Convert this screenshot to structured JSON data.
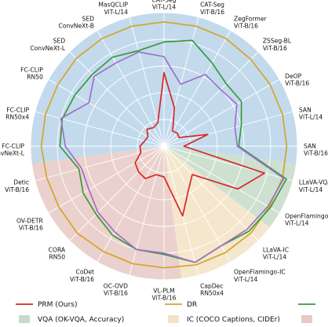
{
  "chart_data": {
    "type": "radar",
    "axes": [
      [
        "CAT-Seg",
        "ViT-L/14"
      ],
      [
        "CAT-Seg",
        "ViT-B/16"
      ],
      [
        "ZegFormer",
        "ViT-B/16"
      ],
      [
        "ZSSeg-BL",
        "ViT-B/16"
      ],
      [
        "DeOP",
        "ViT-B/16"
      ],
      [
        "SAN",
        "ViT-L/14"
      ],
      [
        "SAN",
        "ViT-B/16"
      ],
      [
        "LLaVA-VQA",
        "ViT-L/14"
      ],
      [
        "OpenFlamingo-VQA",
        "ViT-L/14"
      ],
      [
        "LLaVA-IC",
        "ViT-L/14"
      ],
      [
        "OpenFlamingo-IC",
        "ViT-L/14"
      ],
      [
        "CapDec",
        "RN50x4"
      ],
      [
        "VL-PLM",
        "ViT-B/16"
      ],
      [
        "OC-OVD",
        "ViT-B/16"
      ],
      [
        "CoDet",
        "ViT-B/16"
      ],
      [
        "CORA",
        "RN50"
      ],
      [
        "OV-DETR",
        "ViT-B/16"
      ],
      [
        "Detic",
        "ViT-B/16"
      ],
      [
        "FC-CLIP",
        "ConvNeXt-L"
      ],
      [
        "FC-CLIP",
        "RN50x4"
      ],
      [
        "FC-CLIP",
        "RN50"
      ],
      [
        "SED",
        "ConvNeXt-L"
      ],
      [
        "SED",
        "ConvNeXt-B"
      ],
      [
        "MasQCLIP",
        "ViT-L/14"
      ]
    ],
    "rlim": [
      0,
      1
    ],
    "grid": true,
    "sectors": [
      {
        "name": "",
        "color": "#b9d3ea",
        "start_axis": 17.5,
        "end_axis": 6.5
      },
      {
        "name": "VQA (OK-VQA, Accuracy)",
        "color": "#c5dcc9",
        "start_axis": 6.5,
        "end_axis": 8.5
      },
      {
        "name": "IC (COCO Captions, CIDEr)",
        "color": "#f2e3c4",
        "start_axis": 8.5,
        "end_axis": 11.5
      },
      {
        "name": "",
        "color": "#e8c9c4",
        "start_axis": 11.5,
        "end_axis": 17.5
      }
    ],
    "series": [
      {
        "name": "PRM (Ours)",
        "color": "#d62728",
        "values": [
          0.55,
          0.3,
          0.13,
          0.14,
          0.13,
          0.34,
          0.15,
          0.78,
          0.64,
          0.3,
          0.37,
          0.54,
          0.23,
          0.22,
          0.28,
          0.27,
          0.25,
          0.18,
          0.18,
          0.15,
          0.14,
          0.18,
          0.16,
          0.18
        ]
      },
      {
        "name": "DR",
        "color": "#d4a52a",
        "values": [
          0.93,
          0.93,
          0.93,
          0.92,
          0.92,
          0.92,
          0.92,
          0.92,
          0.91,
          0.92,
          0.92,
          0.92,
          0.91,
          0.91,
          0.91,
          0.92,
          0.91,
          0.91,
          0.92,
          0.92,
          0.92,
          0.93,
          0.93,
          0.93
        ]
      },
      {
        "name": "",
        "color": "#3a9a3a",
        "values": [
          0.78,
          0.82,
          0.72,
          0.66,
          0.67,
          0.6,
          0.56,
          0.95,
          0.92,
          0.9,
          0.86,
          0.9,
          0.81,
          0.8,
          0.77,
          0.72,
          0.7,
          0.66,
          0.78,
          0.79,
          0.77,
          0.76,
          0.77,
          0.74
        ]
      },
      {
        "name": "",
        "color": "#a070c8",
        "values": [
          0.67,
          0.48,
          0.62,
          0.6,
          0.63,
          0.55,
          0.55,
          0.93,
          0.9,
          0.88,
          0.86,
          0.9,
          0.8,
          0.8,
          0.74,
          0.7,
          0.65,
          0.64,
          0.74,
          0.8,
          0.65,
          0.74,
          0.72,
          0.73
        ]
      }
    ],
    "legend": {
      "placement": "bottom",
      "entries": [
        {
          "label": "PRM (Ours)",
          "kind": "line",
          "color": "#d62728"
        },
        {
          "label": "DR",
          "kind": "line",
          "color": "#d4a52a"
        },
        {
          "label": "",
          "kind": "line",
          "color": "#3a9a3a"
        },
        {
          "label": "VQA (OK-VQA, Accuracy)",
          "kind": "patch",
          "color": "#c5dcc9"
        },
        {
          "label": "IC (COCO Captions, CIDEr)",
          "kind": "patch",
          "color": "#f2e3c4"
        },
        {
          "label": "",
          "kind": "patch",
          "color": "#e8c9c4"
        }
      ]
    }
  }
}
